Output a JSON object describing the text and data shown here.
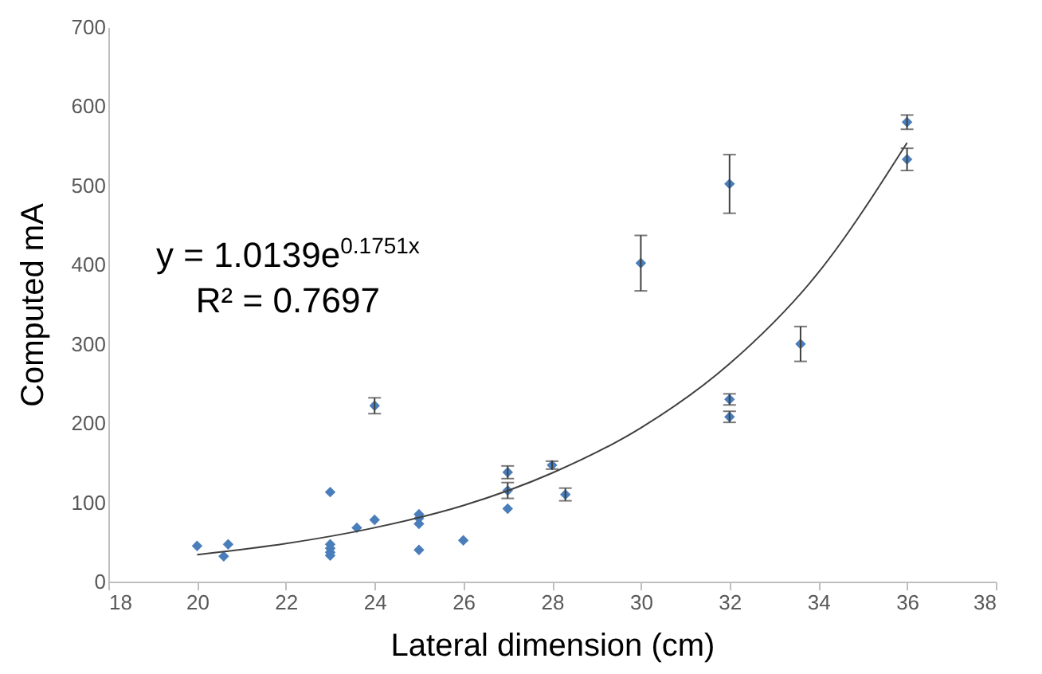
{
  "chart_data": {
    "type": "scatter",
    "xlabel": "Lateral dimension (cm)",
    "ylabel": "Computed mA",
    "annotations": [
      "y = 1.0139e$^{0.1751x}$",
      "R² = 0.7697"
    ],
    "xlim": [
      18,
      38
    ],
    "xticks": [
      18,
      20,
      22,
      24,
      26,
      28,
      30,
      32,
      34,
      36,
      38
    ],
    "ylim": [
      0,
      700
    ],
    "yticks": [
      0,
      100,
      200,
      300,
      400,
      500,
      600,
      700
    ],
    "grid": false,
    "marker": "diamond",
    "series": [
      {
        "color": "#4a7ebb",
        "x": [
          20,
          20.6,
          20.7,
          23,
          23,
          23,
          23,
          23,
          23.6,
          24,
          24,
          25,
          25,
          25,
          25,
          26,
          27,
          27,
          27,
          28,
          28.3,
          30,
          32,
          32,
          32,
          33.6,
          36,
          36
        ],
        "values": [
          45,
          32,
          47,
          113,
          47,
          42,
          37,
          33,
          68,
          78,
          222,
          85,
          80,
          73,
          40,
          52,
          138,
          115,
          92,
          147,
          110,
          402,
          502,
          230,
          208,
          300,
          580,
          533
        ],
        "errors": [
          null,
          null,
          null,
          null,
          null,
          null,
          null,
          null,
          null,
          null,
          10,
          null,
          null,
          null,
          null,
          null,
          8,
          10,
          null,
          5,
          8,
          35,
          37,
          7,
          7,
          22,
          9,
          14
        ]
      },
      {
        "type": "line",
        "color": "#404040",
        "line_style": "solid",
        "marker": "none",
        "x": [
          20,
          22,
          24,
          26,
          28,
          30,
          32,
          34,
          36
        ],
        "values": [
          34,
          48,
          68,
          96,
          137,
          194,
          275,
          390,
          554
        ]
      }
    ]
  }
}
